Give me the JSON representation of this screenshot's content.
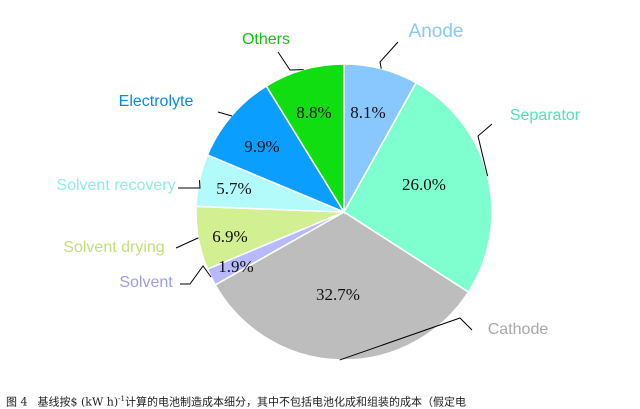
{
  "chart_data": {
    "type": "pie",
    "title": "",
    "slices": [
      {
        "label": "Anode",
        "value": 8.1,
        "display": "8.1%",
        "color": "#89c7ff",
        "label_color": "#89c7ff"
      },
      {
        "label": "Separator",
        "value": 26.0,
        "display": "26.0%",
        "color": "#7fffcf",
        "label_color": "#4ee6b4"
      },
      {
        "label": "Cathode",
        "value": 32.7,
        "display": "32.7%",
        "color": "#bdbdbd",
        "label_color": "#a9a9a9"
      },
      {
        "label": "Solvent",
        "value": 1.9,
        "display": "1.9%",
        "color": "#b9b9ff",
        "label_color": "#9c9ce8"
      },
      {
        "label": "Solvent drying",
        "value": 6.9,
        "display": "6.9%",
        "color": "#d2ef92",
        "label_color": "#c3df78"
      },
      {
        "label": "Solvent recovery",
        "value": 5.7,
        "display": "5.7%",
        "color": "#b3fbfb",
        "label_color": "#90ecec"
      },
      {
        "label": "Electrolyte",
        "value": 9.9,
        "display": "9.9%",
        "color": "#0a9eff",
        "label_color": "#0a88f2"
      },
      {
        "label": "Others",
        "value": 8.8,
        "display": "8.8%",
        "color": "#10de10",
        "label_color": "#14c214"
      }
    ],
    "start_angle": "12 o'clock",
    "direction": "clockwise",
    "label_placement": "outside with leader lines"
  },
  "caption": {
    "figure_number": "图 4",
    "text_before": "基线按$ (kW h)",
    "superscript": "-1",
    "text_after": "计算的电池制造成本细分，其中不包括电池化成和组装的成本（假定电"
  }
}
